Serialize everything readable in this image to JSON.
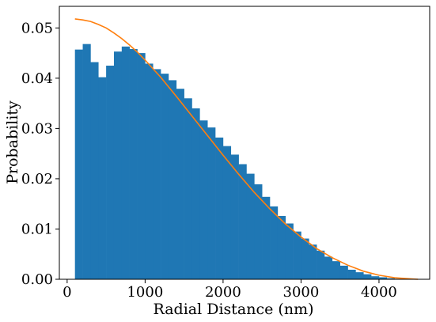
{
  "chart_data": {
    "type": "bar",
    "title": "",
    "xlabel": "Radial Distance (nm)",
    "ylabel": "Probability",
    "xlim": [
      -100,
      4650
    ],
    "ylim": [
      0,
      0.0543
    ],
    "x_ticks": [
      0,
      1000,
      2000,
      3000,
      4000
    ],
    "x_tick_labels": [
      "0",
      "1000",
      "2000",
      "3000",
      "4000"
    ],
    "y_ticks": [
      0.0,
      0.01,
      0.02,
      0.03,
      0.04,
      0.05
    ],
    "y_tick_labels": [
      "0.00",
      "0.01",
      "0.02",
      "0.03",
      "0.04",
      "0.05"
    ],
    "grid": false,
    "histogram": {
      "color": "#1f77b4",
      "bin_start": 100,
      "bin_width": 100,
      "values": [
        0.0457,
        0.0468,
        0.0432,
        0.0402,
        0.0425,
        0.0453,
        0.0463,
        0.0458,
        0.045,
        0.0429,
        0.0418,
        0.0409,
        0.0396,
        0.0379,
        0.036,
        0.034,
        0.0316,
        0.0302,
        0.0282,
        0.0265,
        0.0248,
        0.0229,
        0.021,
        0.0189,
        0.0164,
        0.0145,
        0.0126,
        0.0111,
        0.0095,
        0.0081,
        0.0069,
        0.0057,
        0.0045,
        0.0036,
        0.0027,
        0.0019,
        0.0014,
        0.001,
        0.0006,
        0.0004,
        0.0002,
        0.0001
      ]
    },
    "curve": {
      "type": "line",
      "color": "#ff7f0e",
      "x": [
        100,
        200,
        300,
        400,
        500,
        600,
        700,
        800,
        900,
        1000,
        1200,
        1400,
        1600,
        1800,
        2000,
        2200,
        2400,
        2600,
        2800,
        3000,
        3200,
        3400,
        3600,
        3800,
        4000,
        4200,
        4400,
        4500
      ],
      "y": [
        0.0518,
        0.0516,
        0.0513,
        0.0507,
        0.05,
        0.049,
        0.0479,
        0.0466,
        0.0452,
        0.0436,
        0.0402,
        0.0364,
        0.0325,
        0.0286,
        0.0247,
        0.0209,
        0.0173,
        0.014,
        0.011,
        0.0084,
        0.0061,
        0.0043,
        0.0028,
        0.0016,
        0.0008,
        0.0003,
        0.0001,
        0.0
      ]
    }
  }
}
